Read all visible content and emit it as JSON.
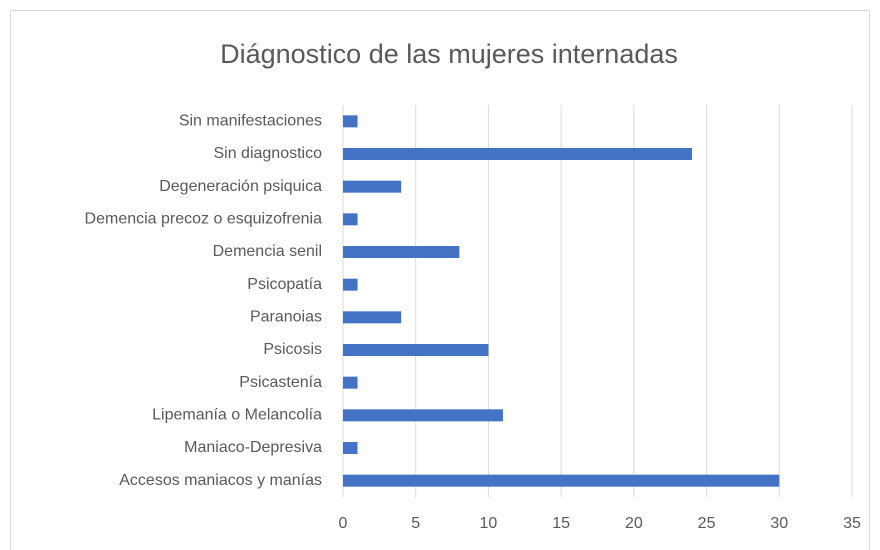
{
  "chart_data": {
    "type": "barh",
    "title": "Diágnostico de las mujeres internadas",
    "categories": [
      "Sin manifestaciones",
      "Sin diagnostico",
      "Degeneración psiquica",
      "Demencia precoz o esquizofrenia",
      "Demencia senil",
      "Psicopatía",
      "Paranoias",
      "Psicosis",
      "Psicastenía",
      "Lipemanía o Melancolía",
      "Maniaco-Depresiva",
      "Accesos maniacos y manías"
    ],
    "values": [
      1,
      24,
      4,
      1,
      8,
      1,
      4,
      10,
      1,
      11,
      1,
      30
    ],
    "color": "#4472c4",
    "xlim": [
      0,
      35
    ],
    "xticks": [
      0,
      5,
      10,
      15,
      20,
      25,
      30,
      35
    ],
    "grid": true
  }
}
